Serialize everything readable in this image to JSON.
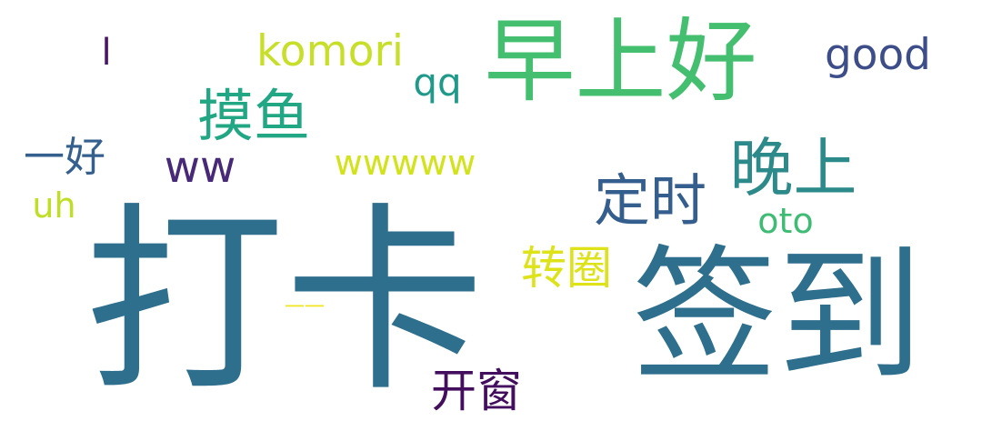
{
  "words": [
    {
      "text": "打卡",
      "color": "#2e6f8e"
    },
    {
      "text": "签到",
      "color": "#2e6f8e"
    },
    {
      "text": "早上好",
      "color": "#44bf70"
    },
    {
      "text": "晚上",
      "color": "#2c8a8a"
    },
    {
      "text": "摸鱼",
      "color": "#22a785"
    },
    {
      "text": "定时",
      "color": "#345e8d"
    },
    {
      "text": "ww",
      "color": "#482878"
    },
    {
      "text": "komori",
      "color": "#c8df2a"
    },
    {
      "text": "good",
      "color": "#3d4d8a"
    },
    {
      "text": "qq",
      "color": "#1f9a8a"
    },
    {
      "text": "wwwww",
      "color": "#d2e21b"
    },
    {
      "text": "转圈",
      "color": "#dde318"
    },
    {
      "text": "开窗",
      "color": "#440e5e"
    },
    {
      "text": "oto",
      "color": "#3fbc73"
    },
    {
      "text": "一好",
      "color": "#35608d"
    },
    {
      "text": "uh",
      "color": "#bfdf25"
    },
    {
      "text": "l",
      "color": "#4b146b"
    },
    {
      "text": "一一",
      "color": "#f0e522"
    }
  ]
}
